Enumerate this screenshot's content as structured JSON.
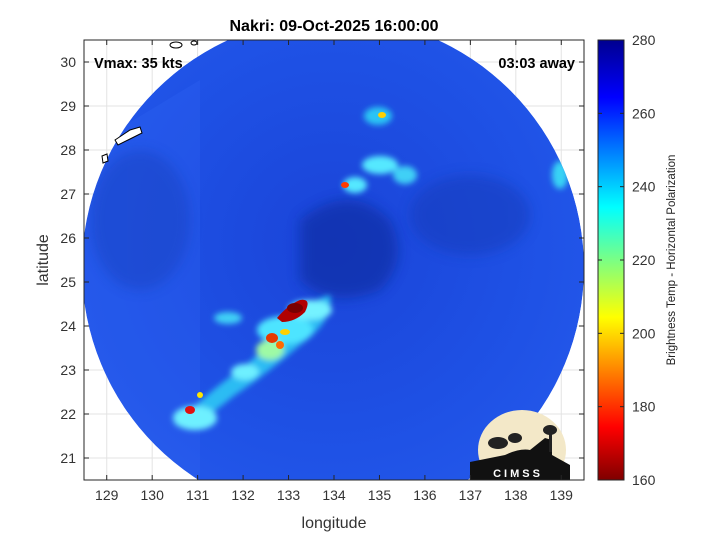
{
  "title": "Nakri: 09-Oct-2025 16:00:00",
  "vmax_label": "Vmax: 35 kts",
  "time_away_label": "03:03 away",
  "logo_text": "CIMSS",
  "map": {
    "xlabel": "longitude",
    "ylabel": "latitude",
    "xlim": [
      128.5,
      139.5
    ],
    "ylim": [
      20.5,
      30.5
    ],
    "xticks": [
      "129",
      "130",
      "131",
      "132",
      "133",
      "134",
      "135",
      "136",
      "137",
      "138",
      "139"
    ],
    "yticks": [
      "21",
      "22",
      "23",
      "24",
      "25",
      "26",
      "27",
      "28",
      "29",
      "30"
    ],
    "grid": true
  },
  "colorbar": {
    "label": "Brightness Temp - Horizontal Polarization",
    "ticks": [
      "160",
      "180",
      "200",
      "220",
      "240",
      "260",
      "280"
    ],
    "range": [
      160,
      280
    ],
    "colormap": [
      "#7f0000",
      "#ff0000",
      "#ffff00",
      "#00ffff",
      "#0000ff",
      "#00008f"
    ]
  },
  "colors": {
    "background_blue": "#1f4fe0",
    "deep_blue": "#0f2a9a",
    "cyan": "#25d6ff",
    "red": "#d41010",
    "dark_red": "#800000",
    "yellow": "#ffe600",
    "logo_bg": "#f3e8c8"
  }
}
